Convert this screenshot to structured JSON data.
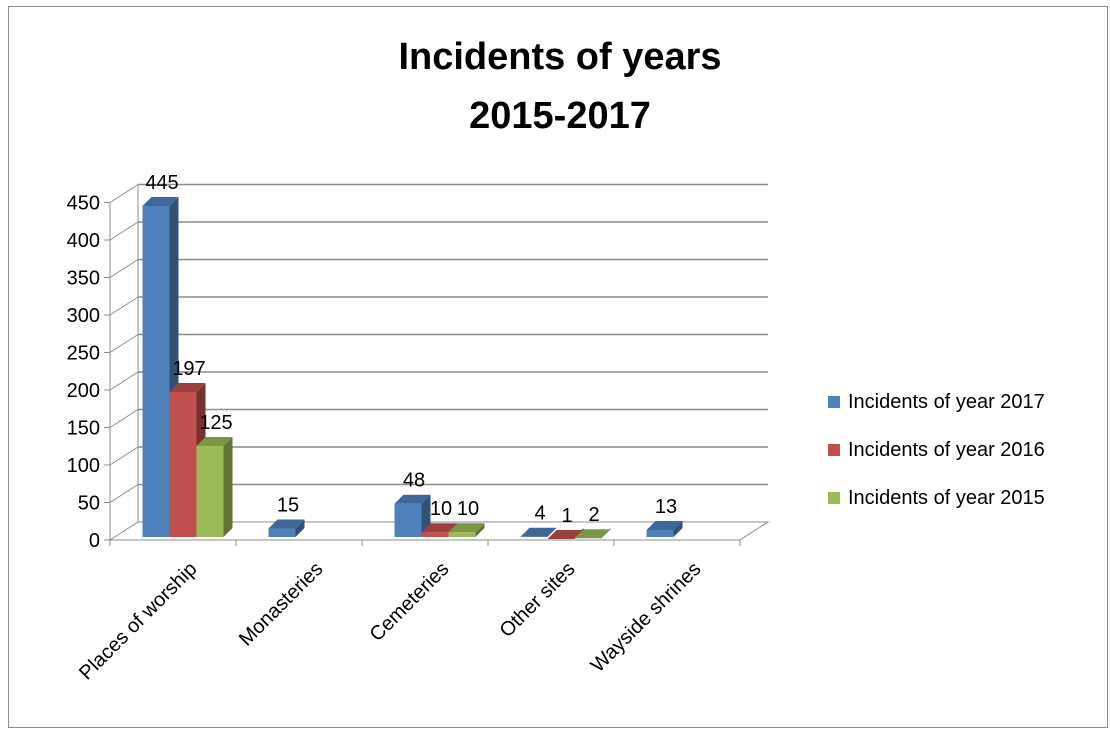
{
  "chart_data": {
    "type": "bar",
    "title": [
      "Incidents of years",
      "2015-2017"
    ],
    "categories": [
      "Places of worship",
      "Monasteries",
      "Cemeteries",
      "Other sites",
      "Wayside shrines"
    ],
    "series": [
      {
        "name": "Incidents of year 2017",
        "color": "#4f81bd",
        "values": [
          445,
          15,
          48,
          4,
          13
        ],
        "labels": [
          "445",
          "15",
          "48",
          "4",
          "13"
        ]
      },
      {
        "name": "Incidents of year 2016",
        "color": "#c0504d",
        "values": [
          197,
          0,
          10,
          1,
          0
        ],
        "labels": [
          "197",
          "",
          "10",
          "1",
          ""
        ]
      },
      {
        "name": "Incidents of year 2015",
        "color": "#9bbb59",
        "values": [
          125,
          0,
          10,
          2,
          0
        ],
        "labels": [
          "125",
          "",
          "10",
          "2",
          ""
        ]
      }
    ],
    "yticks": [
      "0",
      "50",
      "100",
      "150",
      "200",
      "250",
      "300",
      "350",
      "400",
      "450"
    ],
    "ylim": [
      0,
      450
    ],
    "grid": true,
    "legend_position": "right"
  }
}
